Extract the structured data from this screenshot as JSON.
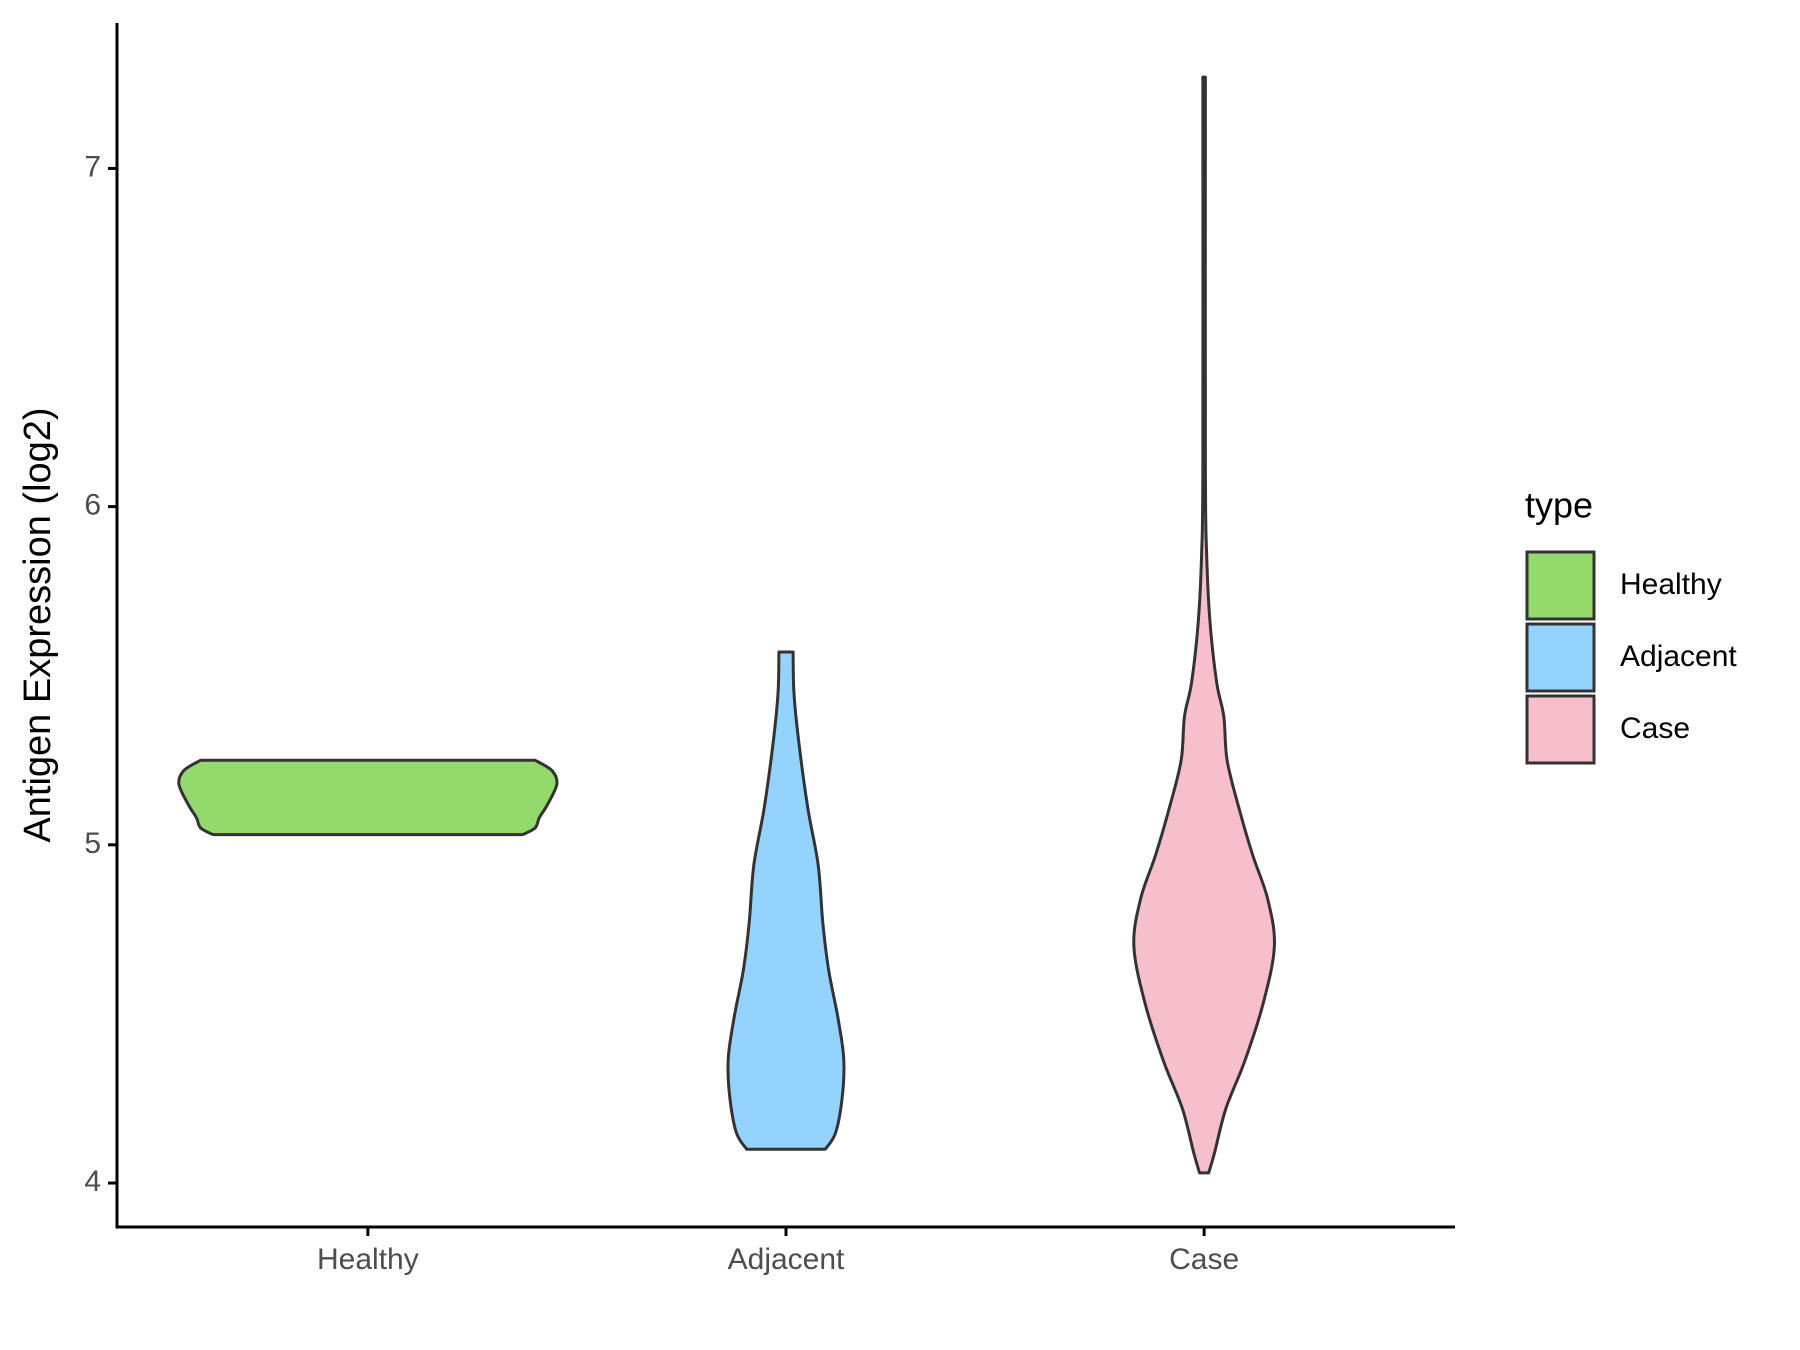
{
  "chart_data": {
    "type": "violin",
    "y_label": "Antigen Expression (log2)",
    "legend_title": "type",
    "categories": [
      "Healthy",
      "Adjacent",
      "Case"
    ],
    "ylim": [
      3.87,
      7.43
    ],
    "yticks": [
      4,
      5,
      6,
      7
    ],
    "series": [
      {
        "name": "Healthy",
        "color": "#93d96c",
        "y": [
          5.03,
          5.05,
          5.08,
          5.12,
          5.18,
          5.22,
          5.25
        ],
        "width": [
          0.37,
          0.4,
          0.41,
          0.43,
          0.452,
          0.44,
          0.4
        ]
      },
      {
        "name": "Adjacent",
        "color": "#94d3fe",
        "y": [
          4.1,
          4.15,
          4.26,
          4.37,
          4.49,
          4.63,
          4.77,
          4.94,
          5.11,
          5.31,
          5.45,
          5.57
        ],
        "width": [
          0.094,
          0.119,
          0.135,
          0.138,
          0.124,
          0.102,
          0.088,
          0.077,
          0.052,
          0.03,
          0.019,
          0.017
        ]
      },
      {
        "name": "Case",
        "color": "#f7bfcb",
        "y": [
          4.03,
          4.09,
          4.22,
          4.36,
          4.53,
          4.7,
          4.84,
          4.97,
          5.11,
          5.25,
          5.38,
          5.48,
          5.66,
          5.86,
          6.13,
          7.27
        ],
        "width": [
          0.011,
          0.025,
          0.052,
          0.097,
          0.141,
          0.168,
          0.152,
          0.116,
          0.083,
          0.055,
          0.047,
          0.03,
          0.014,
          0.006,
          0.003,
          0.003
        ]
      }
    ]
  }
}
